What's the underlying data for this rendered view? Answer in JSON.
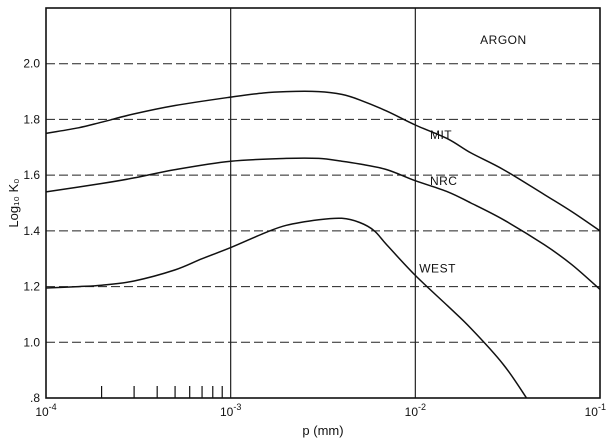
{
  "chart_data": {
    "type": "line",
    "title": "",
    "xlabel": "p (mm)",
    "ylabel": "Log₁₀ K₀",
    "x_scale": "log",
    "xlim": [
      0.0001,
      0.1
    ],
    "ylim": [
      0.8,
      2.2
    ],
    "x_ticks": [
      {
        "value": 0.0001,
        "base": "10",
        "exp": "-4"
      },
      {
        "value": 0.001,
        "base": "10",
        "exp": "-3"
      },
      {
        "value": 0.01,
        "base": "10",
        "exp": "-2"
      },
      {
        "value": 0.1,
        "base": "10",
        "exp": "-1"
      }
    ],
    "y_ticks": [
      {
        "value": 0.8,
        "label": ".8"
      },
      {
        "value": 1.0,
        "label": "1.0"
      },
      {
        "value": 1.2,
        "label": "1.2"
      },
      {
        "value": 1.4,
        "label": "1.4"
      },
      {
        "value": 1.6,
        "label": "1.6"
      },
      {
        "value": 1.8,
        "label": "1.8"
      },
      {
        "value": 2.0,
        "label": "2.0"
      }
    ],
    "grid": "dashed",
    "minor_ticks_x": [
      0.0002,
      0.0003,
      0.0004,
      0.0005,
      0.0006,
      0.0007,
      0.0008,
      0.0009
    ],
    "annotations": [
      {
        "text": "ARGON",
        "x": 0.03,
        "y": 2.07
      }
    ],
    "series": [
      {
        "name": "MIT",
        "label_at": {
          "x": 0.012,
          "y": 1.73
        },
        "points": [
          [
            0.0001,
            1.75
          ],
          [
            0.00015,
            1.77
          ],
          [
            0.0002,
            1.79
          ],
          [
            0.0003,
            1.82
          ],
          [
            0.0005,
            1.85
          ],
          [
            0.001,
            1.88
          ],
          [
            0.0015,
            1.895
          ],
          [
            0.002,
            1.9
          ],
          [
            0.003,
            1.9
          ],
          [
            0.004,
            1.89
          ],
          [
            0.005,
            1.87
          ],
          [
            0.007,
            1.83
          ],
          [
            0.01,
            1.78
          ],
          [
            0.015,
            1.73
          ],
          [
            0.02,
            1.68
          ],
          [
            0.03,
            1.62
          ],
          [
            0.05,
            1.53
          ],
          [
            0.07,
            1.47
          ],
          [
            0.1,
            1.4
          ]
        ]
      },
      {
        "name": "NRC",
        "label_at": {
          "x": 0.012,
          "y": 1.565
        },
        "points": [
          [
            0.0001,
            1.54
          ],
          [
            0.0002,
            1.57
          ],
          [
            0.0003,
            1.59
          ],
          [
            0.0005,
            1.62
          ],
          [
            0.001,
            1.65
          ],
          [
            0.002,
            1.66
          ],
          [
            0.003,
            1.66
          ],
          [
            0.004,
            1.65
          ],
          [
            0.005,
            1.64
          ],
          [
            0.007,
            1.62
          ],
          [
            0.01,
            1.58
          ],
          [
            0.015,
            1.54
          ],
          [
            0.02,
            1.5
          ],
          [
            0.03,
            1.44
          ],
          [
            0.05,
            1.35
          ],
          [
            0.07,
            1.28
          ],
          [
            0.1,
            1.19
          ]
        ]
      },
      {
        "name": "WEST",
        "label_at": {
          "x": 0.0105,
          "y": 1.25
        },
        "points": [
          [
            0.0001,
            1.195
          ],
          [
            0.00015,
            1.2
          ],
          [
            0.0002,
            1.205
          ],
          [
            0.0003,
            1.22
          ],
          [
            0.0005,
            1.26
          ],
          [
            0.0007,
            1.3
          ],
          [
            0.001,
            1.34
          ],
          [
            0.0015,
            1.39
          ],
          [
            0.002,
            1.42
          ],
          [
            0.003,
            1.44
          ],
          [
            0.004,
            1.445
          ],
          [
            0.005,
            1.43
          ],
          [
            0.006,
            1.4
          ],
          [
            0.007,
            1.35
          ],
          [
            0.01,
            1.24
          ],
          [
            0.015,
            1.13
          ],
          [
            0.02,
            1.05
          ],
          [
            0.03,
            0.92
          ],
          [
            0.04,
            0.8
          ]
        ]
      }
    ]
  }
}
